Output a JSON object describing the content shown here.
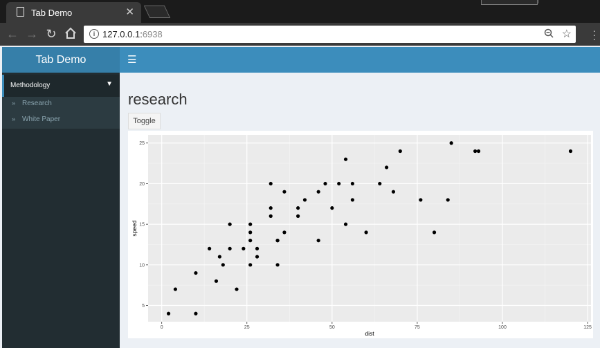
{
  "browser": {
    "tab_title": "Tab Demo",
    "close_glyph": "✕",
    "url_host": "127.0.0.1:",
    "url_port": "6938"
  },
  "app": {
    "title": "Tab Demo",
    "colors": {
      "header": "#3c8dbc",
      "logo": "#367fa9",
      "sidebar": "#222d32"
    }
  },
  "sidebar": {
    "menu_label": "Methodology",
    "items": [
      {
        "label": "Research"
      },
      {
        "label": "White Paper"
      }
    ]
  },
  "main": {
    "title": "research",
    "toggle_label": "Toggle"
  },
  "chart_data": {
    "type": "scatter",
    "xlabel": "dist",
    "ylabel": "speed",
    "xlim": [
      -4,
      126
    ],
    "ylim": [
      3,
      26
    ],
    "xticks": [
      0,
      25,
      50,
      75,
      100,
      125
    ],
    "yticks": [
      5,
      10,
      15,
      20,
      25
    ],
    "grid": true,
    "points": [
      [
        2,
        4
      ],
      [
        10,
        4
      ],
      [
        4,
        7
      ],
      [
        22,
        7
      ],
      [
        16,
        8
      ],
      [
        10,
        9
      ],
      [
        18,
        10
      ],
      [
        26,
        10
      ],
      [
        34,
        10
      ],
      [
        17,
        11
      ],
      [
        28,
        11
      ],
      [
        14,
        12
      ],
      [
        20,
        12
      ],
      [
        24,
        12
      ],
      [
        28,
        12
      ],
      [
        26,
        13
      ],
      [
        34,
        13
      ],
      [
        34,
        13
      ],
      [
        46,
        13
      ],
      [
        26,
        14
      ],
      [
        36,
        14
      ],
      [
        60,
        14
      ],
      [
        80,
        14
      ],
      [
        20,
        15
      ],
      [
        26,
        15
      ],
      [
        54,
        15
      ],
      [
        32,
        16
      ],
      [
        40,
        16
      ],
      [
        32,
        17
      ],
      [
        40,
        17
      ],
      [
        50,
        17
      ],
      [
        42,
        18
      ],
      [
        56,
        18
      ],
      [
        76,
        18
      ],
      [
        84,
        18
      ],
      [
        36,
        19
      ],
      [
        46,
        19
      ],
      [
        68,
        19
      ],
      [
        32,
        20
      ],
      [
        48,
        20
      ],
      [
        52,
        20
      ],
      [
        56,
        20
      ],
      [
        64,
        20
      ],
      [
        66,
        22
      ],
      [
        54,
        23
      ],
      [
        70,
        24
      ],
      [
        92,
        24
      ],
      [
        93,
        24
      ],
      [
        120,
        24
      ],
      [
        85,
        25
      ]
    ]
  }
}
